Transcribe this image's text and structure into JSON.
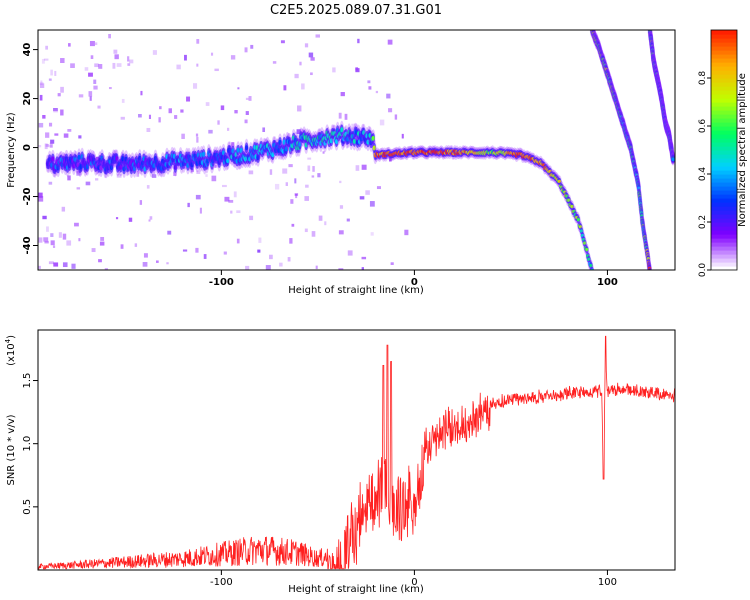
{
  "title": "C2E5.2025.089.07.31.G01",
  "chart_data": [
    {
      "type": "heatmap",
      "xlabel": "Height of straight line (km)",
      "ylabel": "Frequency (Hz)",
      "xlim": [
        -195,
        135
      ],
      "ylim": [
        -50,
        48
      ],
      "xticks": [
        -100,
        0,
        100
      ],
      "xtick_labels": [
        "-100",
        "0",
        "100"
      ],
      "yticks": [
        -40,
        -20,
        0,
        20,
        40
      ],
      "ytick_labels": [
        "-40",
        "-20",
        "0",
        "20",
        "40"
      ],
      "colorbar": {
        "label": "Normalized spectral amplitude",
        "range": [
          0,
          1
        ],
        "ticks": [
          0.0,
          0.2,
          0.4,
          0.6,
          0.8
        ],
        "tick_labels": [
          "0.0",
          "0.2",
          "0.4",
          "0.6",
          "0.8"
        ],
        "colormap": [
          "#ffffff",
          "#8000ff",
          "#0030ff",
          "#00d0ff",
          "#00ff60",
          "#c0ff00",
          "#ffb000",
          "#ff2000"
        ]
      },
      "traces": [
        {
          "name": "main-trace",
          "x": [
            -190,
            -170,
            -150,
            -130,
            -110,
            -90,
            -70,
            -50,
            -35,
            -22,
            -20,
            0,
            20,
            40,
            55,
            65,
            75,
            85,
            92
          ],
          "y": [
            -7,
            -6,
            -7,
            -6,
            -5,
            -3,
            0,
            4,
            5,
            4,
            -3,
            -2,
            -2,
            -2,
            -3,
            -6,
            -14,
            -30,
            -50
          ],
          "intensity": [
            0.25,
            0.25,
            0.25,
            0.3,
            0.3,
            0.35,
            0.4,
            0.45,
            0.4,
            0.35,
            0.9,
            1.0,
            0.95,
            0.6,
            1.0,
            0.9,
            0.7,
            0.6,
            0.5
          ]
        },
        {
          "name": "steep-trace-1",
          "x": [
            92,
            96,
            100,
            104,
            108,
            112,
            116,
            118,
            120,
            122
          ],
          "y": [
            48,
            40,
            30,
            20,
            10,
            0,
            -15,
            -30,
            -40,
            -50
          ],
          "intensity": [
            0.7,
            0.7,
            0.65,
            0.6,
            0.55,
            0.5,
            0.5,
            0.55,
            0.6,
            0.9
          ]
        },
        {
          "name": "steep-trace-2",
          "x": [
            122,
            124,
            126,
            128,
            130,
            132,
            134
          ],
          "y": [
            48,
            35,
            28,
            20,
            10,
            5,
            -5
          ],
          "intensity": [
            0.6,
            0.6,
            0.55,
            0.5,
            0.5,
            0.5,
            0.45
          ]
        }
      ]
    },
    {
      "type": "line",
      "xlabel": "Height of straight line (km)",
      "ylabel": "SNR (10 * v/v)",
      "y_multiplier_label": "(x10",
      "y_multiplier_exponent": "4",
      "y_multiplier_close": ")",
      "xlim": [
        -195,
        135
      ],
      "ylim": [
        0,
        1.9
      ],
      "xticks": [
        -100,
        0,
        100
      ],
      "xtick_labels": [
        "-100",
        "0",
        "100"
      ],
      "yticks": [
        0.5,
        1.0,
        1.5
      ],
      "ytick_labels": [
        "0.5",
        "1.0",
        "1.5"
      ],
      "color": "#ff2020",
      "series": [
        {
          "x": [
            -195,
            -180,
            -160,
            -140,
            -120,
            -100,
            -80,
            -60,
            -50,
            -45,
            -40,
            -35,
            -30,
            -25,
            -20,
            -15,
            -10,
            -5,
            0,
            5,
            10,
            20,
            30,
            40,
            50,
            60,
            70,
            80,
            90,
            97,
            98,
            99,
            100,
            110,
            120,
            130,
            135
          ],
          "y": [
            0.03,
            0.04,
            0.06,
            0.08,
            0.1,
            0.14,
            0.18,
            0.15,
            0.1,
            0.12,
            0.2,
            0.35,
            0.55,
            0.7,
            0.8,
            0.85,
            0.75,
            0.7,
            0.8,
            1.05,
            1.15,
            1.25,
            1.32,
            1.36,
            1.39,
            1.4,
            1.42,
            1.44,
            1.45,
            1.46,
            0.75,
            1.8,
            1.45,
            1.47,
            1.45,
            1.43,
            1.42
          ]
        }
      ]
    }
  ]
}
